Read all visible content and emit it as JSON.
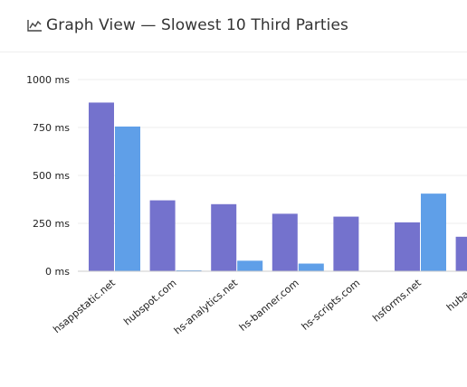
{
  "header": {
    "icon": "line-chart-icon",
    "title": "Graph View — Slowest 10 Third Parties"
  },
  "chart_data": {
    "type": "bar",
    "title": "",
    "xlabel": "",
    "ylabel": "",
    "ylim": [
      0,
      1000
    ],
    "yticks": [
      "0 ms",
      "250 ms",
      "500 ms",
      "750 ms",
      "1000 ms"
    ],
    "grid": true,
    "categories": [
      "hsappstatic.net",
      "hubspot.com",
      "hs-analytics.net",
      "hs-banner.com",
      "hs-scripts.com",
      "hsforms.net",
      "hubapi.c"
    ],
    "series": [
      {
        "color": "#7472cd",
        "values": [
          880,
          370,
          350,
          300,
          285,
          255,
          180
        ]
      },
      {
        "color": "#5f9fe8",
        "values": [
          755,
          5,
          55,
          40,
          0,
          405,
          0
        ]
      }
    ]
  }
}
